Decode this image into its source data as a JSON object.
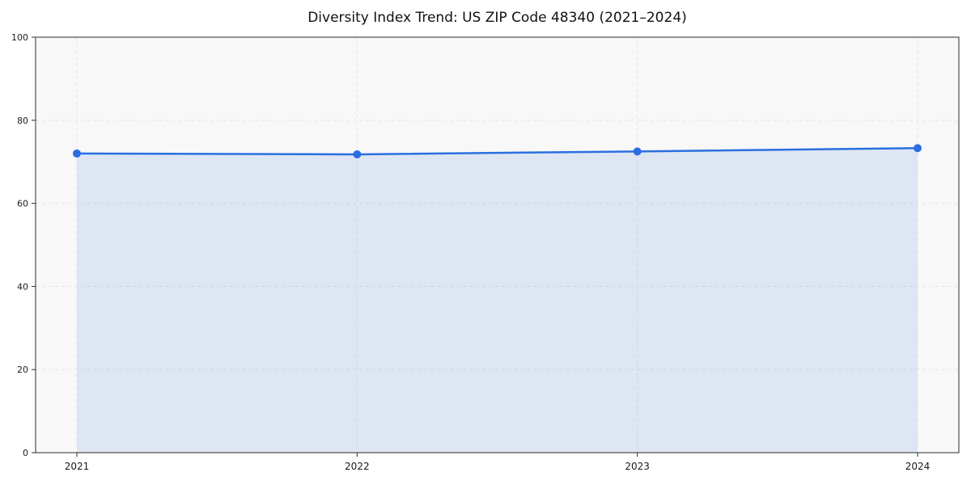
{
  "title": "Diversity Index Trend: US ZIP Code 48340 (2021–2024)",
  "chart_data": {
    "type": "area",
    "categories": [
      "2021",
      "2022",
      "2023",
      "2024"
    ],
    "series": [
      {
        "name": "Diversity Index",
        "values": [
          72.0,
          71.8,
          72.5,
          73.3
        ]
      }
    ],
    "title": "Diversity Index Trend: US ZIP Code 48340 (2021–2024)",
    "xlabel": "",
    "ylabel": "",
    "ylim": [
      0,
      100
    ],
    "yticks": [
      0,
      20,
      40,
      60,
      80,
      100
    ],
    "grid": true,
    "grid_style": "dashed",
    "legend": false,
    "colors": {
      "line": "#2a6fdf",
      "marker": "#2a6fdf",
      "fill": "rgba(42, 111, 223, 0.12)",
      "plot_background": "#f8f8f8",
      "gridline": "#e4e4e4",
      "spine": "#2b2b2b",
      "tick_text": "#1a1a1a"
    }
  }
}
